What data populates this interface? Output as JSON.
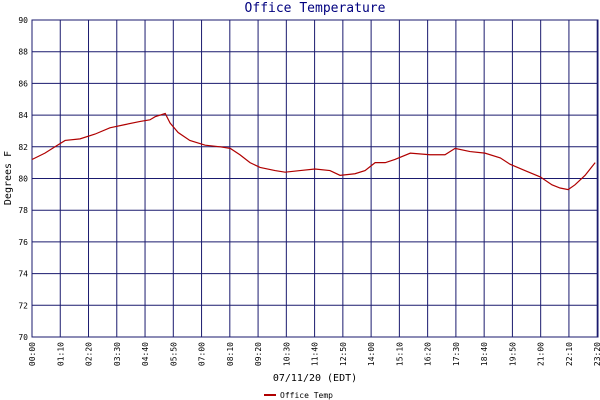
{
  "chart_data": {
    "type": "line",
    "title": "Office Temperature",
    "y_label": "Degrees F",
    "x_label": "07/11/20 (EDT)",
    "x": [
      0,
      32,
      57,
      82,
      119,
      156,
      193,
      230,
      268,
      292,
      305,
      330,
      342,
      362,
      391,
      429,
      466,
      491,
      515,
      540,
      565,
      602,
      627,
      664,
      701,
      738,
      763,
      800,
      825,
      850,
      875,
      899,
      937,
      986,
      1023,
      1048,
      1085,
      1122,
      1160,
      1184,
      1221,
      1259,
      1288,
      1308,
      1328,
      1345,
      1370,
      1395
    ],
    "series": [
      {
        "name": "Office Temp",
        "color": "#b00000",
        "values": [
          81.2,
          81.6,
          82.0,
          82.4,
          82.5,
          82.8,
          83.2,
          83.4,
          83.6,
          83.7,
          83.9,
          84.1,
          83.5,
          82.9,
          82.4,
          82.1,
          82.0,
          81.9,
          81.5,
          81.0,
          80.7,
          80.5,
          80.4,
          80.5,
          80.6,
          80.5,
          80.2,
          80.3,
          80.5,
          81.0,
          81.0,
          81.2,
          81.6,
          81.5,
          81.5,
          81.9,
          81.7,
          81.6,
          81.3,
          80.9,
          80.5,
          80.1,
          79.6,
          79.4,
          79.3,
          79.6,
          80.2,
          81.0
        ]
      }
    ],
    "xlim": [
      0,
      1402
    ],
    "ylim": [
      70,
      90
    ],
    "xticks": [
      {
        "value": 0,
        "label": "00:00"
      },
      {
        "value": 70,
        "label": "01:10"
      },
      {
        "value": 140,
        "label": "02:20"
      },
      {
        "value": 210,
        "label": "03:30"
      },
      {
        "value": 280,
        "label": "04:40"
      },
      {
        "value": 350,
        "label": "05:50"
      },
      {
        "value": 420,
        "label": "07:00"
      },
      {
        "value": 490,
        "label": "08:10"
      },
      {
        "value": 560,
        "label": "09:20"
      },
      {
        "value": 630,
        "label": "10:30"
      },
      {
        "value": 700,
        "label": "11:40"
      },
      {
        "value": 770,
        "label": "12:50"
      },
      {
        "value": 840,
        "label": "14:00"
      },
      {
        "value": 910,
        "label": "15:10"
      },
      {
        "value": 980,
        "label": "16:20"
      },
      {
        "value": 1050,
        "label": "17:30"
      },
      {
        "value": 1120,
        "label": "18:40"
      },
      {
        "value": 1190,
        "label": "19:50"
      },
      {
        "value": 1260,
        "label": "21:00"
      },
      {
        "value": 1330,
        "label": "22:10"
      },
      {
        "value": 1400,
        "label": "23:20"
      }
    ],
    "yticks": [
      70,
      72,
      74,
      76,
      78,
      80,
      82,
      84,
      86,
      88,
      90
    ],
    "grid": true
  }
}
